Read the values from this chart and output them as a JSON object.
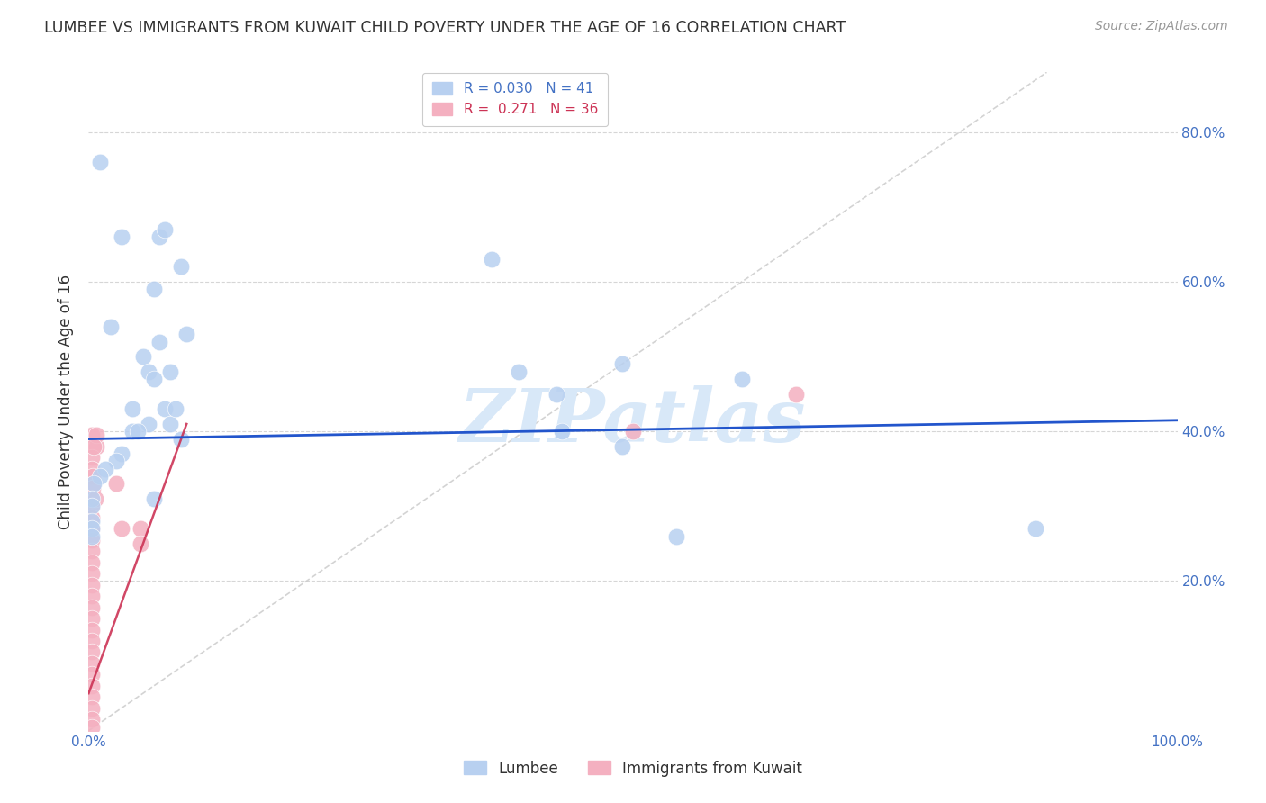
{
  "title": "LUMBEE VS IMMIGRANTS FROM KUWAIT CHILD POVERTY UNDER THE AGE OF 16 CORRELATION CHART",
  "source": "Source: ZipAtlas.com",
  "ylabel": "Child Poverty Under the Age of 16",
  "lumbee_color": "#b8d0f0",
  "kuwait_color": "#f4b0c0",
  "trendline_lumbee_color": "#2255cc",
  "trendline_kuwait_color": "#cc3355",
  "trendline_diag_color": "#cccccc",
  "watermark": "ZIPatlas",
  "watermark_color": "#d8e8f8",
  "background_color": "#ffffff",
  "grid_color": "#cccccc",
  "lumbee_points": [
    [
      0.01,
      0.76
    ],
    [
      0.03,
      0.66
    ],
    [
      0.06,
      0.59
    ],
    [
      0.065,
      0.66
    ],
    [
      0.07,
      0.67
    ],
    [
      0.085,
      0.62
    ],
    [
      0.09,
      0.53
    ],
    [
      0.065,
      0.52
    ],
    [
      0.075,
      0.48
    ],
    [
      0.02,
      0.54
    ],
    [
      0.05,
      0.5
    ],
    [
      0.055,
      0.48
    ],
    [
      0.06,
      0.47
    ],
    [
      0.04,
      0.43
    ],
    [
      0.07,
      0.43
    ],
    [
      0.075,
      0.41
    ],
    [
      0.08,
      0.43
    ],
    [
      0.085,
      0.39
    ],
    [
      0.055,
      0.41
    ],
    [
      0.04,
      0.4
    ],
    [
      0.045,
      0.4
    ],
    [
      0.03,
      0.37
    ],
    [
      0.025,
      0.36
    ],
    [
      0.015,
      0.35
    ],
    [
      0.01,
      0.34
    ],
    [
      0.005,
      0.33
    ],
    [
      0.003,
      0.31
    ],
    [
      0.003,
      0.3
    ],
    [
      0.003,
      0.28
    ],
    [
      0.003,
      0.27
    ],
    [
      0.003,
      0.26
    ],
    [
      0.06,
      0.31
    ],
    [
      0.37,
      0.63
    ],
    [
      0.395,
      0.48
    ],
    [
      0.43,
      0.45
    ],
    [
      0.435,
      0.4
    ],
    [
      0.49,
      0.49
    ],
    [
      0.49,
      0.38
    ],
    [
      0.54,
      0.26
    ],
    [
      0.6,
      0.47
    ],
    [
      0.87,
      0.27
    ]
  ],
  "kuwait_points": [
    [
      0.003,
      0.395
    ],
    [
      0.007,
      0.38
    ],
    [
      0.003,
      0.365
    ],
    [
      0.003,
      0.35
    ],
    [
      0.025,
      0.33
    ],
    [
      0.003,
      0.3
    ],
    [
      0.003,
      0.285
    ],
    [
      0.003,
      0.27
    ],
    [
      0.003,
      0.255
    ],
    [
      0.003,
      0.24
    ],
    [
      0.003,
      0.225
    ],
    [
      0.003,
      0.21
    ],
    [
      0.003,
      0.195
    ],
    [
      0.003,
      0.18
    ],
    [
      0.003,
      0.165
    ],
    [
      0.003,
      0.15
    ],
    [
      0.003,
      0.135
    ],
    [
      0.003,
      0.12
    ],
    [
      0.003,
      0.105
    ],
    [
      0.003,
      0.09
    ],
    [
      0.003,
      0.075
    ],
    [
      0.003,
      0.06
    ],
    [
      0.003,
      0.045
    ],
    [
      0.003,
      0.03
    ],
    [
      0.003,
      0.015
    ],
    [
      0.003,
      0.005
    ],
    [
      0.03,
      0.27
    ],
    [
      0.048,
      0.27
    ],
    [
      0.048,
      0.25
    ],
    [
      0.007,
      0.395
    ],
    [
      0.005,
      0.38
    ],
    [
      0.004,
      0.34
    ],
    [
      0.004,
      0.325
    ],
    [
      0.006,
      0.31
    ],
    [
      0.5,
      0.4
    ],
    [
      0.65,
      0.45
    ]
  ],
  "xlim": [
    0.0,
    1.0
  ],
  "ylim": [
    0.0,
    0.88
  ],
  "xtick_positions": [
    0.0,
    1.0
  ],
  "xtick_labels": [
    "0.0%",
    "100.0%"
  ],
  "right_ytick_positions": [
    0.2,
    0.4,
    0.6,
    0.8
  ],
  "right_ytick_labels": [
    "20.0%",
    "40.0%",
    "60.0%",
    "80.0%"
  ],
  "lumbee_trend": [
    0.0,
    1.0,
    0.39,
    0.415
  ],
  "kuwait_trend_solid": [
    0.0,
    0.09,
    0.05,
    0.41
  ],
  "diag_line": [
    0.0,
    0.88,
    0.0,
    0.88
  ]
}
